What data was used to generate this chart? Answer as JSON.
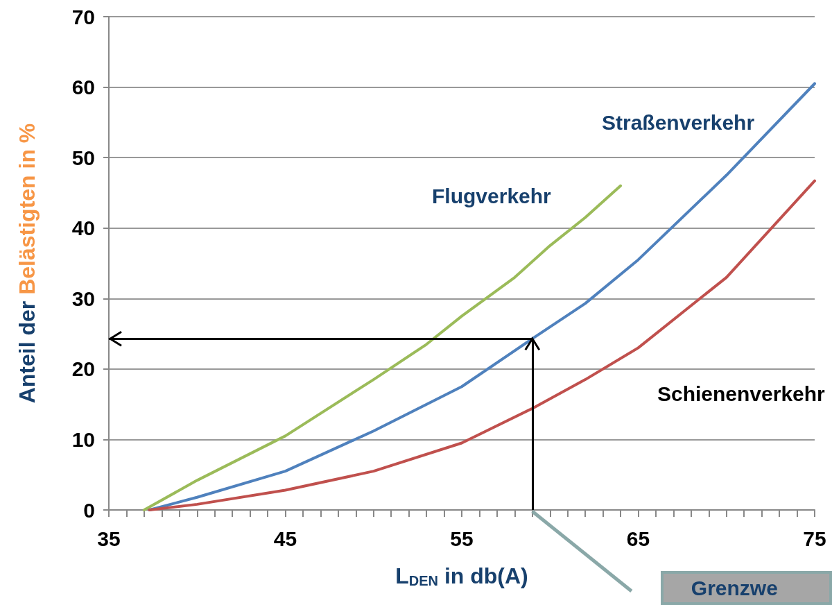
{
  "chart_data": {
    "type": "line",
    "xlabel": "L$_{DEN}$ in db(A)",
    "ylabel": "Anteil der Belästigten in %",
    "xlim": [
      35,
      75
    ],
    "xticks": [
      35,
      {
        "value": 36,
        "label": null
      },
      {
        "value": 37,
        "label": null
      },
      {
        "value": 38,
        "label": null
      },
      {
        "value": 39,
        "label": null
      },
      {
        "value": 40,
        "label": null
      },
      {
        "value": 41,
        "label": null
      },
      {
        "value": 42,
        "label": null
      },
      {
        "value": 43,
        "label": null
      },
      {
        "value": 44,
        "label": null
      },
      45,
      {
        "value": 46,
        "label": null
      },
      {
        "value": 47,
        "label": null
      },
      {
        "value": 48,
        "label": null
      },
      {
        "value": 49,
        "label": null
      },
      {
        "value": 50,
        "label": null
      },
      {
        "value": 51,
        "label": null
      },
      {
        "value": 52,
        "label": null
      },
      {
        "value": 53,
        "label": null
      },
      {
        "value": 54,
        "label": null
      },
      55,
      {
        "value": 56,
        "label": null
      },
      {
        "value": 57,
        "label": null
      },
      {
        "value": 58,
        "label": null
      },
      {
        "value": 59,
        "label": null
      },
      {
        "value": 60,
        "label": null
      },
      {
        "value": 61,
        "label": null
      },
      {
        "value": 62,
        "label": null
      },
      {
        "value": 63,
        "label": null
      },
      {
        "value": 64,
        "label": null
      },
      65,
      {
        "value": 66,
        "label": null
      },
      {
        "value": 67,
        "label": null
      },
      {
        "value": 68,
        "label": null
      },
      {
        "value": 69,
        "label": null
      },
      {
        "value": 70,
        "label": null
      },
      {
        "value": 71,
        "label": null
      },
      {
        "value": 72,
        "label": null
      },
      {
        "value": 73,
        "label": null
      },
      {
        "value": 74,
        "label": null
      },
      75
    ],
    "ylim": [
      0,
      70
    ],
    "yticks": [
      0,
      10,
      20,
      30,
      40,
      50,
      60,
      70
    ],
    "grid": "y",
    "legend": false,
    "marker": "none",
    "line_style": "solid",
    "series": [
      {
        "name": "Flugverkehr",
        "color": "#9bbb59",
        "x": [
          37,
          40,
          45,
          50,
          53,
          55,
          58,
          60,
          62,
          64
        ],
        "values": [
          0,
          4.2,
          10.5,
          18.5,
          23.5,
          27.5,
          33,
          37.5,
          41.5,
          46
        ]
      },
      {
        "name": "Straßenverkehr",
        "color": "#4f81bd",
        "x": [
          37.3,
          40,
          45,
          50,
          55,
          59,
          62,
          65,
          70,
          75
        ],
        "values": [
          0,
          1.8,
          5.5,
          11.2,
          17.5,
          24.3,
          29.3,
          35.5,
          47.5,
          60.5
        ]
      },
      {
        "name": "Schienenverkehr",
        "color": "#c0504d",
        "x": [
          37.3,
          40,
          45,
          50,
          55,
          59,
          62,
          65,
          70,
          75
        ],
        "values": [
          0,
          0.8,
          2.8,
          5.5,
          9.5,
          14.4,
          18.5,
          23,
          33,
          46.7
        ]
      }
    ],
    "ref_lines": [
      {
        "axis": "x",
        "value": 59,
        "color": "#000000"
      },
      {
        "axis": "y",
        "value": 24.3,
        "color": "#000000"
      }
    ],
    "annotations": [
      "Grenzwe"
    ]
  }
}
